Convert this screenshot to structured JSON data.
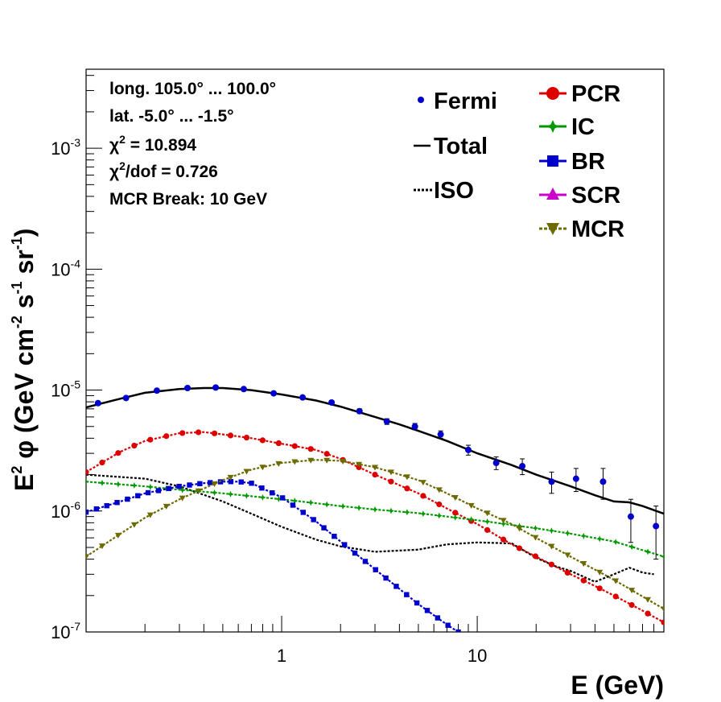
{
  "chart_data": {
    "type": "line",
    "xlabel": "E (GeV)",
    "ylabel_parts": {
      "a": "E",
      "a_sup": "2",
      "b": " φ (GeV cm",
      "b_sup": "-2",
      "c": " s",
      "c_sup": "-1",
      "d": " sr",
      "d_sup": "-1",
      "e": ")"
    },
    "x_scale": "log",
    "y_scale": "log",
    "xlim": [
      0.1,
      90
    ],
    "ylim": [
      1e-07,
      0.0045
    ],
    "x_tick_labels": [
      {
        "v": 1,
        "text": "1"
      },
      {
        "v": 10,
        "text": "10"
      }
    ],
    "y_tick_labels": [
      {
        "v": 1e-07,
        "base": "10",
        "exp": "-7"
      },
      {
        "v": 1e-06,
        "base": "10",
        "exp": "-6"
      },
      {
        "v": 1e-05,
        "base": "10",
        "exp": "-5"
      },
      {
        "v": 0.0001,
        "base": "10",
        "exp": "-4"
      },
      {
        "v": 0.001,
        "base": "10",
        "exp": "-3"
      }
    ],
    "info": {
      "line1": "long. 105.0° ... 100.0°",
      "line2": "lat. -5.0° ... -1.5°",
      "chi": "χ",
      "chi_sup": "2",
      "chi_val": " = 10.894",
      "chidof_val": "/dof = 0.726",
      "line5": "MCR Break: 10 GeV"
    },
    "legend": [
      {
        "key": "fermi",
        "label": "Fermi"
      },
      {
        "key": "total",
        "label": "Total"
      },
      {
        "key": "iso",
        "label": "ISO"
      },
      {
        "key": "pcr",
        "label": "PCR"
      },
      {
        "key": "ic",
        "label": "IC"
      },
      {
        "key": "br",
        "label": "BR"
      },
      {
        "key": "scr",
        "label": "SCR"
      },
      {
        "key": "mcr",
        "label": "MCR"
      }
    ],
    "colors": {
      "fermi": "#0000cc",
      "total": "#000000",
      "iso": "#000000",
      "pcr": "#dd0000",
      "ic": "#009900",
      "br": "#0000cc",
      "scr": "#cc00cc",
      "mcr": "#6b6b00"
    },
    "fermi_points": [
      {
        "x": 0.115,
        "y": 7.8e-06,
        "err": 3e-07
      },
      {
        "x": 0.16,
        "y": 8.6e-06,
        "err": 3e-07
      },
      {
        "x": 0.23,
        "y": 9.9e-06,
        "err": 3e-07
      },
      {
        "x": 0.33,
        "y": 1.04e-05,
        "err": 3e-07
      },
      {
        "x": 0.46,
        "y": 1.05e-05,
        "err": 3e-07
      },
      {
        "x": 0.64,
        "y": 1.02e-05,
        "err": 3e-07
      },
      {
        "x": 0.91,
        "y": 9.4e-06,
        "err": 3e-07
      },
      {
        "x": 1.28,
        "y": 8.7e-06,
        "err": 3e-07
      },
      {
        "x": 1.8,
        "y": 7.9e-06,
        "err": 3e-07
      },
      {
        "x": 2.5,
        "y": 6.7e-06,
        "err": 3e-07
      },
      {
        "x": 3.45,
        "y": 5.5e-06,
        "err": 3e-07
      },
      {
        "x": 4.8,
        "y": 5e-06,
        "err": 3e-07
      },
      {
        "x": 6.5,
        "y": 4.3e-06,
        "err": 3e-07
      },
      {
        "x": 9.0,
        "y": 3.2e-06,
        "err": 3e-07
      },
      {
        "x": 12.5,
        "y": 2.5e-06,
        "err": 3e-07
      },
      {
        "x": 17.0,
        "y": 2.35e-06,
        "err": 3.5e-07
      },
      {
        "x": 24.0,
        "y": 1.75e-06,
        "err": 3.5e-07
      },
      {
        "x": 32.0,
        "y": 1.85e-06,
        "err": 4e-07
      },
      {
        "x": 44.0,
        "y": 1.75e-06,
        "err": 5e-07
      },
      {
        "x": 61.0,
        "y": 9e-07,
        "err": 3.5e-07
      },
      {
        "x": 82.0,
        "y": 7.5e-07,
        "err": 3.5e-07
      }
    ],
    "series": [
      {
        "key": "total",
        "style": "solid",
        "x": [
          0.1,
          0.15,
          0.2,
          0.3,
          0.4,
          0.5,
          0.7,
          1.0,
          1.5,
          2.0,
          3.0,
          4.0,
          5.0,
          7.0,
          10,
          15,
          20,
          30,
          40,
          50,
          60,
          70,
          90
        ],
        "y": [
          7.2e-06,
          8.5e-06,
          9.5e-06,
          1.02e-05,
          1.04e-05,
          1.04e-05,
          1e-05,
          9.2e-06,
          8.2e-06,
          7.3e-06,
          6e-06,
          5.2e-06,
          4.6e-06,
          3.8e-06,
          3e-06,
          2.4e-06,
          2e-06,
          1.6e-06,
          1.35e-06,
          1.2e-06,
          1.18e-06,
          1.1e-06,
          9.5e-07
        ]
      },
      {
        "key": "iso",
        "style": "dashed",
        "x": [
          0.1,
          0.2,
          0.3,
          0.5,
          0.7,
          1.0,
          1.5,
          2.0,
          3.0,
          5.0,
          7.0,
          10,
          15,
          20,
          25,
          30,
          40,
          50,
          60,
          70,
          80
        ],
        "y": [
          2e-06,
          1.85e-06,
          1.6e-06,
          1.2e-06,
          9.5e-07,
          7.4e-07,
          5.8e-07,
          5.1e-07,
          4.6e-07,
          4.8e-07,
          5.3e-07,
          5.5e-07,
          5.4e-07,
          4.1e-07,
          3.5e-07,
          3.2e-07,
          2.6e-07,
          3e-07,
          3.4e-07,
          3.1e-07,
          3e-07
        ]
      },
      {
        "key": "pcr",
        "marker": "circle",
        "x": [
          0.1,
          0.15,
          0.2,
          0.3,
          0.4,
          0.5,
          0.7,
          1.0,
          1.5,
          2.0,
          3.0,
          5.0,
          7.0,
          10,
          15,
          20,
          30,
          40,
          50,
          70,
          90
        ],
        "y": [
          2.1e-06,
          3.1e-06,
          3.8e-06,
          4.4e-06,
          4.5e-06,
          4.3e-06,
          4e-06,
          3.6e-06,
          3.2e-06,
          2.7e-06,
          2e-06,
          1.4e-06,
          1.05e-06,
          7.8e-07,
          5.3e-07,
          4.2e-07,
          3e-07,
          2.4e-07,
          2e-07,
          1.5e-07,
          1.2e-07
        ]
      },
      {
        "key": "ic",
        "marker": "star",
        "x": [
          0.1,
          0.2,
          0.3,
          0.5,
          1.0,
          2.0,
          3.0,
          5.0,
          10,
          20,
          30,
          50,
          90
        ],
        "y": [
          1.75e-06,
          1.6e-06,
          1.5e-06,
          1.4e-06,
          1.25e-06,
          1.1e-06,
          1.03e-06,
          9.6e-07,
          8.4e-07,
          7.2e-07,
          6.5e-07,
          5.6e-07,
          4.2e-07
        ]
      },
      {
        "key": "br",
        "marker": "square",
        "x": [
          0.1,
          0.15,
          0.2,
          0.3,
          0.4,
          0.5,
          0.6,
          0.7,
          1.0,
          1.5,
          2.0,
          3.0,
          5.0,
          7.0,
          8.0
        ],
        "y": [
          9.8e-07,
          1.2e-06,
          1.4e-06,
          1.6e-06,
          1.7e-06,
          1.75e-06,
          1.75e-06,
          1.7e-06,
          1.3e-06,
          8.2e-07,
          5.6e-07,
          3.3e-07,
          1.7e-07,
          1.15e-07,
          1e-07
        ]
      },
      {
        "key": "mcr",
        "marker": "triangle-down",
        "x": [
          0.1,
          0.15,
          0.2,
          0.3,
          0.5,
          0.7,
          1.0,
          1.5,
          2.0,
          3.0,
          5.0,
          7.0,
          10,
          15,
          20,
          30,
          50,
          90
        ],
        "y": [
          4.2e-07,
          6.5e-07,
          8.8e-07,
          1.25e-06,
          1.8e-06,
          2.2e-06,
          2.5e-06,
          2.65e-06,
          2.6e-06,
          2.3e-06,
          1.8e-06,
          1.4e-06,
          1.05e-06,
          7.8e-07,
          6e-07,
          4.2e-07,
          2.7e-07,
          1.55e-07
        ]
      }
    ]
  }
}
